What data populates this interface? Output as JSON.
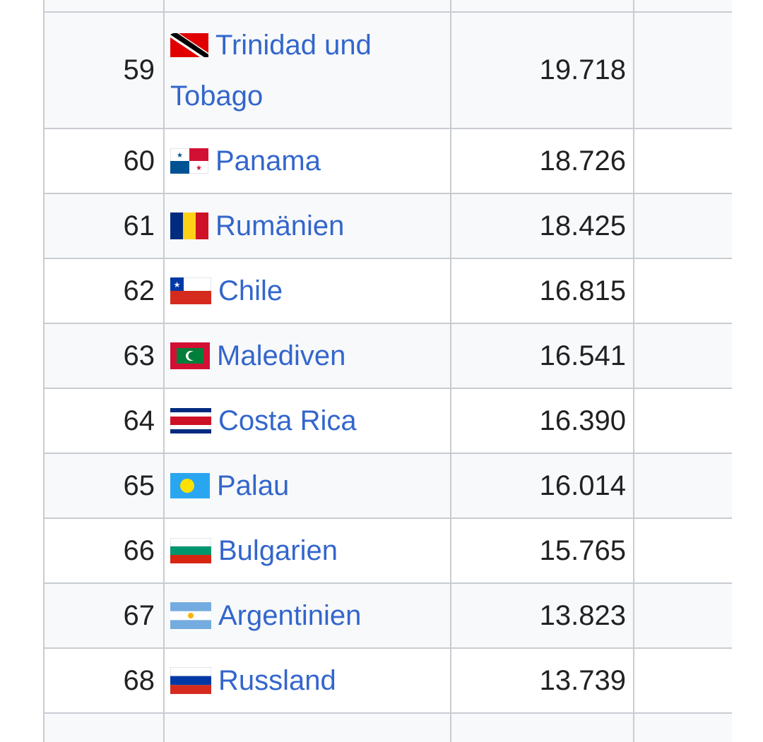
{
  "table": {
    "rows": [
      {
        "rank": "59",
        "country": "Trinidad und Tobago",
        "country_line1": "Trinidad und",
        "country_line2": "Tobago",
        "flag": "trinidad-tobago-flag",
        "value": "19.718"
      },
      {
        "rank": "60",
        "country": "Panama",
        "flag": "panama-flag",
        "value": "18.726"
      },
      {
        "rank": "61",
        "country": "Rumänien",
        "flag": "romania-flag",
        "value": "18.425"
      },
      {
        "rank": "62",
        "country": "Chile",
        "flag": "chile-flag",
        "value": "16.815"
      },
      {
        "rank": "63",
        "country": "Malediven",
        "flag": "maldives-flag",
        "value": "16.541"
      },
      {
        "rank": "64",
        "country": "Costa Rica",
        "flag": "costa-rica-flag",
        "value": "16.390"
      },
      {
        "rank": "65",
        "country": "Palau",
        "flag": "palau-flag",
        "value": "16.014"
      },
      {
        "rank": "66",
        "country": "Bulgarien",
        "flag": "bulgaria-flag",
        "value": "15.765"
      },
      {
        "rank": "67",
        "country": "Argentinien",
        "flag": "argentina-flag",
        "value": "13.823"
      },
      {
        "rank": "68",
        "country": "Russland",
        "flag": "russia-flag",
        "value": "13.739"
      }
    ]
  },
  "colors": {
    "link": "#3366cc",
    "border": "#c8ccd1",
    "stripe": "#f8f9fa",
    "text": "#202122"
  }
}
